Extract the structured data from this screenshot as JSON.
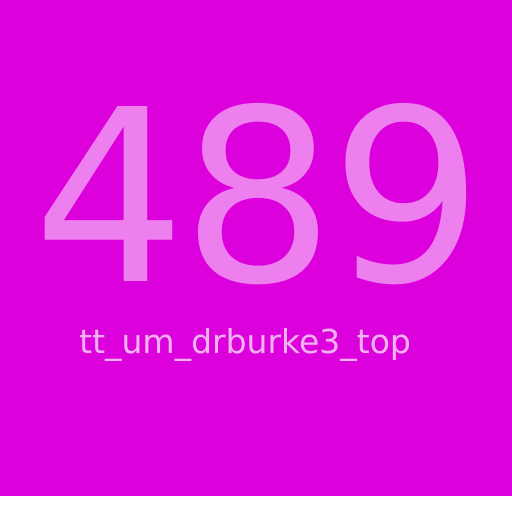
{
  "tile": {
    "number": "489",
    "label": "tt_um_drburke3_top"
  },
  "colors": {
    "background": "#dc00dc",
    "number": "#ee7fee",
    "label": "#f2b2f2"
  }
}
